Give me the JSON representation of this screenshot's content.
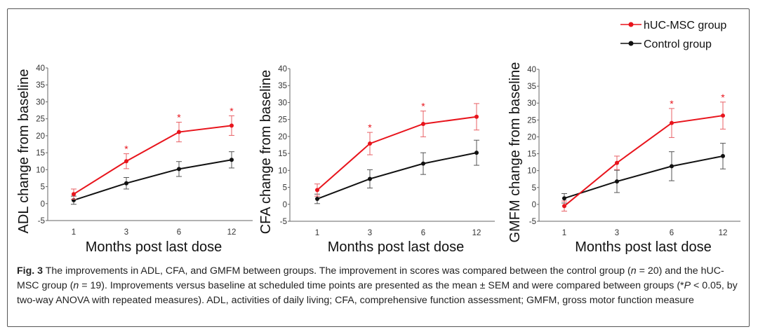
{
  "legend": {
    "position": "top-right",
    "entries": [
      {
        "name": "hUC-MSC group",
        "color": "#e8141c"
      },
      {
        "name": "Control group",
        "color": "#111111"
      }
    ]
  },
  "chart_data": [
    {
      "type": "line",
      "ylabel": "ADL change from baseline",
      "xlabel": "Months post last dose",
      "categories": [
        "1",
        "3",
        "6",
        "12"
      ],
      "ylim": [
        -5,
        40
      ],
      "yticks": [
        "40",
        "35",
        "30",
        "25",
        "20",
        "15",
        "10",
        "5",
        "0",
        "-5"
      ],
      "grid": false,
      "series": [
        {
          "name": "hUC-MSC group",
          "color": "#e8141c",
          "values": [
            2.8,
            12.5,
            21.1,
            23.0
          ],
          "sem": [
            1.5,
            2.2,
            2.9,
            2.9
          ]
        },
        {
          "name": "Control group",
          "color": "#111111",
          "values": [
            1.0,
            6.0,
            10.2,
            12.9
          ],
          "sem": [
            1.2,
            1.7,
            2.2,
            2.4
          ]
        }
      ],
      "significance": [
        false,
        true,
        true,
        true
      ],
      "significance_mark": "*"
    },
    {
      "type": "line",
      "ylabel": "CFA change from baseline",
      "xlabel": "Months post last dose",
      "categories": [
        "1",
        "3",
        "6",
        "12"
      ],
      "ylim": [
        -5,
        40
      ],
      "yticks": [
        "40",
        "35",
        "30",
        "25",
        "20",
        "15",
        "10",
        "5",
        "0",
        "-5"
      ],
      "grid": false,
      "series": [
        {
          "name": "hUC-MSC group",
          "color": "#e8141c",
          "values": [
            4.2,
            17.9,
            23.7,
            25.8
          ],
          "sem": [
            1.8,
            3.3,
            3.8,
            3.9
          ]
        },
        {
          "name": "Control group",
          "color": "#111111",
          "values": [
            1.6,
            7.5,
            12.0,
            15.2
          ],
          "sem": [
            1.4,
            2.7,
            3.2,
            3.7
          ]
        }
      ],
      "significance": [
        false,
        true,
        true,
        false
      ],
      "significance_mark": "*"
    },
    {
      "type": "line",
      "ylabel": "GMFM change from baseline",
      "xlabel": "Months post last dose",
      "categories": [
        "1",
        "3",
        "6",
        "12"
      ],
      "ylim": [
        -5,
        40
      ],
      "yticks": [
        "40",
        "35",
        "30",
        "25",
        "20",
        "15",
        "10",
        "5",
        "0",
        "-5"
      ],
      "grid": false,
      "series": [
        {
          "name": "hUC-MSC group",
          "color": "#e8141c",
          "values": [
            -0.5,
            12.3,
            24.1,
            26.3
          ],
          "sem": [
            1.5,
            2.0,
            4.3,
            4.0
          ]
        },
        {
          "name": "Control group",
          "color": "#111111",
          "values": [
            1.8,
            6.8,
            11.3,
            14.3
          ],
          "sem": [
            1.4,
            3.3,
            4.3,
            3.8
          ]
        }
      ],
      "significance": [
        false,
        false,
        true,
        true
      ],
      "significance_mark": "*"
    }
  ],
  "caption": {
    "label": "Fig. 3",
    "segments": [
      {
        "text": " The improvements in ADL, CFA, and GMFM between groups. The improvement in scores was compared between the control group (",
        "italic": false
      },
      {
        "text": "n",
        "italic": true
      },
      {
        "text": " = 20) and the hUC-MSC group (",
        "italic": false
      },
      {
        "text": "n",
        "italic": true
      },
      {
        "text": " = 19). Improvements versus baseline at scheduled time points are presented as the mean ± SEM and were compared between groups (*",
        "italic": false
      },
      {
        "text": "P",
        "italic": true
      },
      {
        "text": " < 0.05, by two-way ANOVA with repeated measures). ADL, activities of daily living; CFA, comprehensive function assessment; GMFM, gross motor function measure",
        "italic": false
      }
    ]
  }
}
